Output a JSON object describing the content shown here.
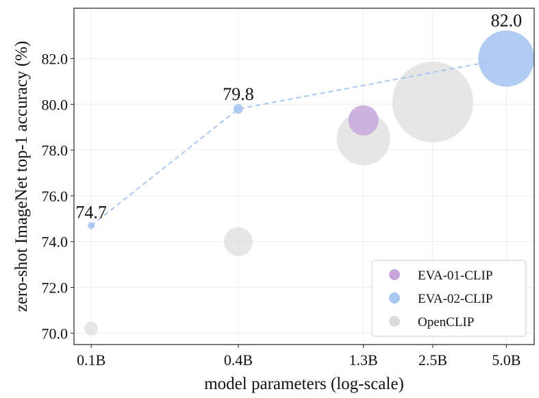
{
  "chart_data": {
    "type": "scatter",
    "xlabel": "model parameters (log-scale)",
    "ylabel": "zero-shot ImageNet top-1 accuracy (%)",
    "ylim": [
      69.5,
      84.2
    ],
    "xscale": "log",
    "xlim_params_B": [
      0.085,
      6.5
    ],
    "grid": true,
    "legend_position": "bottom-right",
    "x_ticks": [
      {
        "value": 0.1,
        "label": "0.1B"
      },
      {
        "value": 0.4,
        "label": "0.4B"
      },
      {
        "value": 1.3,
        "label": "1.3B"
      },
      {
        "value": 2.5,
        "label": "2.5B"
      },
      {
        "value": 5.0,
        "label": "5.0B"
      }
    ],
    "y_ticks": [
      {
        "value": 70,
        "label": "70.0"
      },
      {
        "value": 72,
        "label": "72.0"
      },
      {
        "value": 74,
        "label": "74.0"
      },
      {
        "value": 76,
        "label": "76.0"
      },
      {
        "value": 78,
        "label": "78.0"
      },
      {
        "value": 80,
        "label": "80.0"
      },
      {
        "value": 82,
        "label": "82.0"
      }
    ],
    "series": [
      {
        "name": "OpenCLIP",
        "color": "#dcdcdc",
        "opacity": 0.7,
        "points": [
          {
            "params_B": 0.1,
            "accuracy": 70.2
          },
          {
            "params_B": 0.4,
            "accuracy": 74.0
          },
          {
            "params_B": 1.3,
            "accuracy": 78.5
          },
          {
            "params_B": 2.5,
            "accuracy": 80.1
          }
        ]
      },
      {
        "name": "EVA-01-CLIP",
        "color": "#c7a6dc",
        "opacity": 0.85,
        "points": [
          {
            "params_B": 1.3,
            "accuracy": 79.3
          }
        ]
      },
      {
        "name": "EVA-02-CLIP",
        "color": "#a9c5f2",
        "opacity": 0.9,
        "connected": true,
        "line_color": "#a9c5f2",
        "points": [
          {
            "params_B": 0.1,
            "accuracy": 74.7,
            "label": "74.7"
          },
          {
            "params_B": 0.4,
            "accuracy": 79.8,
            "label": "79.8"
          },
          {
            "params_B": 5.0,
            "accuracy": 82.0,
            "label": "82.0"
          }
        ]
      }
    ],
    "legend": [
      {
        "name": "EVA-01-CLIP",
        "color": "#c7a6dc"
      },
      {
        "name": "EVA-02-CLIP",
        "color": "#a9c5f2"
      },
      {
        "name": "OpenCLIP",
        "color": "#dcdcdc"
      }
    ]
  }
}
